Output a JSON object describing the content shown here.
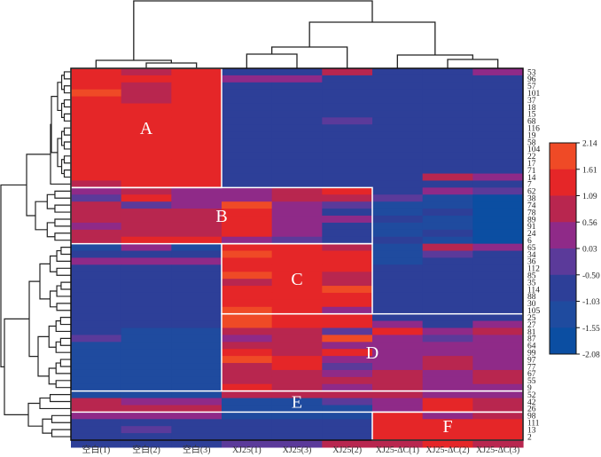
{
  "chart_data": {
    "type": "heatmap",
    "title": "",
    "columns": [
      "空白(1)",
      "空白(2)",
      "空白(3)",
      "XJ25(1)",
      "XJ25(3)",
      "XJ25(2)",
      "XJ25-ΔC(1)",
      "XJ25-ΔC(2)",
      "XJ25-ΔC(3)"
    ],
    "rows": [
      "53",
      "96",
      "57",
      "101",
      "37",
      "18",
      "15",
      "68",
      "116",
      "19",
      "58",
      "104",
      "22",
      "17",
      "71",
      "14",
      "7",
      "62",
      "38",
      "74",
      "78",
      "89",
      "91",
      "24",
      "6",
      "65",
      "34",
      "36",
      "112",
      "85",
      "35",
      "114",
      "88",
      "30",
      "105",
      "25",
      "27",
      "81",
      "87",
      "64",
      "99",
      "97",
      "77",
      "67",
      "55",
      "9",
      "52",
      "42",
      "26",
      "98",
      "111",
      "13",
      "2"
    ],
    "color_scale": {
      "min": -2.08,
      "max": 2.14,
      "ticks": [
        "2.14",
        "1.61",
        "1.09",
        "0.56",
        "0.03",
        "-0.50",
        "-1.03",
        "-1.55",
        "-2.08"
      ],
      "bins": [
        {
          "range": [
            -2.08,
            -1.55
          ],
          "color": "#0b4ea2"
        },
        {
          "range": [
            -1.55,
            -1.03
          ],
          "color": "#1f4b9f"
        },
        {
          "range": [
            -1.03,
            -0.5
          ],
          "color": "#2d3f98"
        },
        {
          "range": [
            -0.5,
            0.03
          ],
          "color": "#5b3a9a"
        },
        {
          "range": [
            0.03,
            0.56
          ],
          "color": "#8f2a88"
        },
        {
          "range": [
            0.56,
            1.09
          ],
          "color": "#b8264f"
        },
        {
          "range": [
            1.09,
            1.61
          ],
          "color": "#e52628"
        },
        {
          "range": [
            1.61,
            2.14
          ],
          "color": "#ef4a26"
        }
      ]
    },
    "levels_note": "values are bin indices 0..7 into color_scale.bins (approximate z-scores read from colors)",
    "values": [
      [
        6,
        5,
        6,
        2,
        2,
        5,
        2,
        2,
        4
      ],
      [
        6,
        6,
        6,
        4,
        4,
        2,
        2,
        2,
        2
      ],
      [
        6,
        5,
        6,
        2,
        2,
        2,
        2,
        2,
        2
      ],
      [
        7,
        5,
        6,
        2,
        2,
        2,
        2,
        2,
        2
      ],
      [
        6,
        5,
        6,
        2,
        2,
        2,
        2,
        2,
        2
      ],
      [
        6,
        6,
        6,
        2,
        2,
        2,
        2,
        2,
        2
      ],
      [
        6,
        6,
        6,
        2,
        2,
        2,
        2,
        2,
        2
      ],
      [
        6,
        6,
        6,
        2,
        2,
        3,
        2,
        2,
        2
      ],
      [
        6,
        6,
        6,
        2,
        2,
        2,
        2,
        2,
        2
      ],
      [
        6,
        6,
        6,
        2,
        2,
        2,
        2,
        2,
        2
      ],
      [
        6,
        6,
        6,
        2,
        2,
        2,
        2,
        2,
        2
      ],
      [
        6,
        6,
        6,
        2,
        2,
        2,
        2,
        2,
        2
      ],
      [
        6,
        6,
        6,
        2,
        2,
        2,
        2,
        2,
        2
      ],
      [
        6,
        6,
        6,
        2,
        2,
        2,
        2,
        2,
        2
      ],
      [
        6,
        6,
        6,
        2,
        2,
        2,
        2,
        2,
        2
      ],
      [
        6,
        6,
        6,
        2,
        2,
        2,
        2,
        5,
        4
      ],
      [
        5,
        6,
        6,
        2,
        2,
        2,
        2,
        2,
        2
      ],
      [
        4,
        5,
        4,
        4,
        5,
        6,
        2,
        4,
        3
      ],
      [
        3,
        6,
        4,
        4,
        5,
        5,
        3,
        1,
        0
      ],
      [
        5,
        3,
        4,
        7,
        4,
        3,
        1,
        1,
        0
      ],
      [
        5,
        5,
        5,
        6,
        4,
        2,
        1,
        2,
        0
      ],
      [
        5,
        5,
        5,
        6,
        4,
        4,
        2,
        1,
        0
      ],
      [
        4,
        5,
        5,
        6,
        4,
        2,
        1,
        1,
        0
      ],
      [
        5,
        5,
        5,
        6,
        4,
        2,
        1,
        2,
        0
      ],
      [
        5,
        6,
        6,
        4,
        3,
        2,
        2,
        1,
        0
      ],
      [
        1,
        4,
        1,
        6,
        6,
        5,
        1,
        5,
        4
      ],
      [
        2,
        2,
        2,
        7,
        6,
        6,
        1,
        3,
        2
      ],
      [
        4,
        4,
        4,
        6,
        6,
        6,
        1,
        2,
        2
      ],
      [
        2,
        2,
        2,
        6,
        6,
        6,
        2,
        2,
        2
      ],
      [
        2,
        2,
        2,
        7,
        6,
        5,
        2,
        2,
        2
      ],
      [
        2,
        2,
        2,
        5,
        6,
        5,
        2,
        2,
        2
      ],
      [
        2,
        2,
        2,
        6,
        6,
        7,
        2,
        2,
        2
      ],
      [
        2,
        2,
        2,
        6,
        6,
        6,
        2,
        2,
        2
      ],
      [
        2,
        2,
        2,
        6,
        6,
        6,
        2,
        2,
        2
      ],
      [
        2,
        2,
        2,
        7,
        6,
        4,
        2,
        2,
        2
      ],
      [
        2,
        2,
        2,
        7,
        6,
        6,
        2,
        2,
        2
      ],
      [
        2,
        2,
        2,
        7,
        6,
        6,
        4,
        2,
        4
      ],
      [
        2,
        1,
        1,
        5,
        5,
        3,
        6,
        4,
        5
      ],
      [
        3,
        1,
        1,
        4,
        5,
        7,
        4,
        3,
        4
      ],
      [
        1,
        1,
        1,
        5,
        5,
        4,
        4,
        4,
        4
      ],
      [
        1,
        1,
        1,
        6,
        5,
        6,
        4,
        4,
        4
      ],
      [
        1,
        1,
        1,
        7,
        6,
        4,
        4,
        5,
        4
      ],
      [
        1,
        1,
        1,
        5,
        6,
        3,
        4,
        5,
        4
      ],
      [
        1,
        1,
        1,
        5,
        5,
        4,
        5,
        4,
        5
      ],
      [
        1,
        1,
        1,
        5,
        5,
        5,
        5,
        4,
        5
      ],
      [
        1,
        1,
        1,
        6,
        5,
        4,
        5,
        4,
        4
      ],
      [
        1,
        1,
        1,
        5,
        5,
        5,
        5,
        4,
        4
      ],
      [
        5,
        4,
        4,
        1,
        1,
        3,
        4,
        6,
        5
      ],
      [
        5,
        5,
        5,
        1,
        1,
        1,
        4,
        6,
        5
      ],
      [
        4,
        4,
        4,
        1,
        1,
        1,
        6,
        4,
        5
      ],
      [
        2,
        2,
        2,
        2,
        2,
        2,
        6,
        6,
        6
      ],
      [
        2,
        3,
        2,
        2,
        2,
        2,
        6,
        6,
        6
      ],
      [
        2,
        2,
        2,
        2,
        2,
        2,
        6,
        6,
        6
      ],
      [
        2,
        2,
        2,
        3,
        3,
        5,
        5,
        6,
        5
      ]
    ],
    "clusters": [
      {
        "label": "A",
        "rows": [
          "53",
          "7"
        ],
        "cols": [
          "空白(1)",
          "空白(3)"
        ]
      },
      {
        "label": "B",
        "rows": [
          "62",
          "6"
        ],
        "cols": [
          "空白(1)",
          "XJ25(2)"
        ]
      },
      {
        "label": "C",
        "rows": [
          "65",
          "105"
        ],
        "cols": [
          "XJ25(1)",
          "XJ25(2)"
        ]
      },
      {
        "label": "D",
        "rows": [
          "25",
          "9"
        ],
        "cols": [
          "XJ25(1)",
          "XJ25-ΔC(3)"
        ]
      },
      {
        "label": "E",
        "rows": [
          "52",
          "26"
        ],
        "cols": [
          "空白(1)",
          "XJ25-ΔC(3)"
        ]
      },
      {
        "label": "F",
        "rows": [
          "98",
          "2"
        ],
        "cols": [
          "XJ25-ΔC(1)",
          "XJ25-ΔC(3)"
        ]
      }
    ],
    "legend_position": "right",
    "xlabel": "",
    "ylabel": ""
  }
}
